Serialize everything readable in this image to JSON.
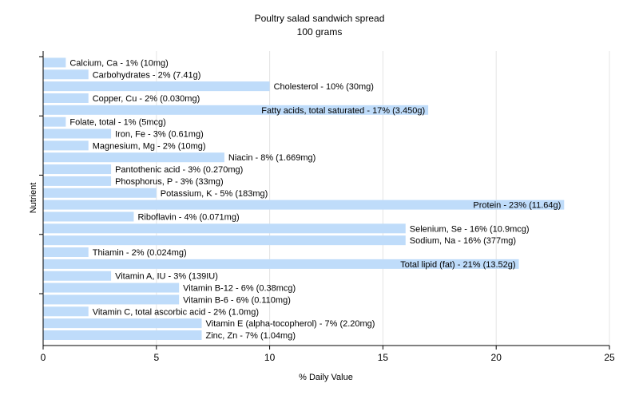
{
  "colors": {
    "bar": "#bfdcfa",
    "grid": "#e4e4e4",
    "axis": "#000000",
    "text": "#000000"
  },
  "chart_data": {
    "type": "bar",
    "orientation": "horizontal",
    "title": "Poultry salad sandwich spread",
    "subtitle": "100 grams",
    "xlabel": "% Daily Value",
    "ylabel": "Nutrient",
    "xlim": [
      0,
      25
    ],
    "xticks": [
      0,
      5,
      10,
      15,
      20,
      25
    ],
    "grid": true,
    "categories": [
      "Calcium, Ca",
      "Carbohydrates",
      "Cholesterol",
      "Copper, Cu",
      "Fatty acids, total saturated",
      "Folate, total",
      "Iron, Fe",
      "Magnesium, Mg",
      "Niacin",
      "Pantothenic acid",
      "Phosphorus, P",
      "Potassium, K",
      "Protein",
      "Riboflavin",
      "Selenium, Se",
      "Sodium, Na",
      "Thiamin",
      "Total lipid (fat)",
      "Vitamin A, IU",
      "Vitamin B-12",
      "Vitamin B-6",
      "Vitamin C, total ascorbic acid",
      "Vitamin E (alpha-tocopherol)",
      "Zinc, Zn"
    ],
    "values": [
      1,
      2,
      10,
      2,
      17,
      1,
      3,
      2,
      8,
      3,
      3,
      5,
      23,
      4,
      16,
      16,
      2,
      21,
      3,
      6,
      6,
      2,
      7,
      7
    ],
    "labels": [
      "Calcium, Ca - 1% (10mg)",
      "Carbohydrates - 2% (7.41g)",
      "Cholesterol - 10% (30mg)",
      "Copper, Cu - 2% (0.030mg)",
      "Fatty acids, total saturated - 17% (3.450g)",
      "Folate, total - 1% (5mcg)",
      "Iron, Fe - 3% (0.61mg)",
      "Magnesium, Mg - 2% (10mg)",
      "Niacin - 8% (1.669mg)",
      "Pantothenic acid - 3% (0.270mg)",
      "Phosphorus, P - 3% (33mg)",
      "Potassium, K - 5% (183mg)",
      "Protein - 23% (11.64g)",
      "Riboflavin - 4% (0.071mg)",
      "Selenium, Se - 16% (10.9mcg)",
      "Sodium, Na - 16% (377mg)",
      "Thiamin - 2% (0.024mg)",
      "Total lipid (fat) - 21% (13.52g)",
      "Vitamin A, IU - 3% (139IU)",
      "Vitamin B-12 - 6% (0.38mcg)",
      "Vitamin B-6 - 6% (0.110mg)",
      "Vitamin C, total ascorbic acid - 2% (1.0mg)",
      "Vitamin E (alpha-tocopherol) - 7% (2.20mg)",
      "Zinc, Zn - 7% (1.04mg)"
    ]
  }
}
